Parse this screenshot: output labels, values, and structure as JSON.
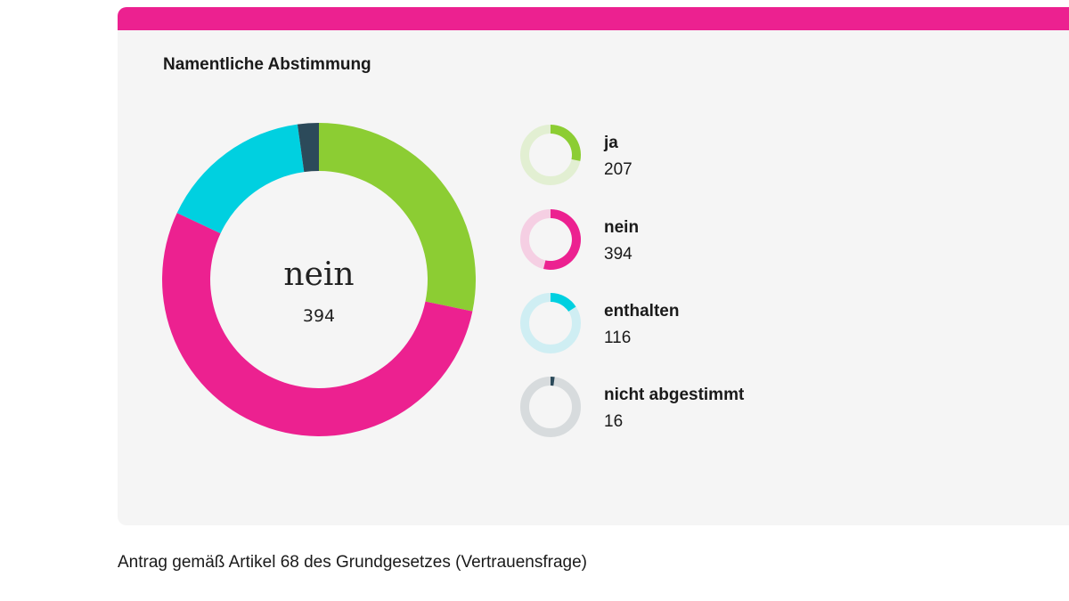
{
  "card": {
    "title": "Namentliche Abstimmung"
  },
  "chart_data": {
    "type": "pie",
    "title": "Namentliche Abstimmung",
    "categories": [
      "ja",
      "nein",
      "enthalten",
      "nicht abgestimmt"
    ],
    "values": [
      207,
      394,
      116,
      16
    ],
    "colors": [
      "#8ccd33",
      "#ec2190",
      "#00d0e0",
      "#2c4a5a"
    ],
    "track_colors": [
      "#e2efd2",
      "#f5cfe3",
      "#cfeef3",
      "#d7dbdd"
    ],
    "center": {
      "label": "nein",
      "value": "394"
    }
  },
  "legend": {
    "items": [
      {
        "label": "ja",
        "count": "207"
      },
      {
        "label": "nein",
        "count": "394"
      },
      {
        "label": "enthalten",
        "count": "116"
      },
      {
        "label": "nicht abgestimmt",
        "count": "16"
      }
    ]
  },
  "caption": "Antrag gemäß Artikel 68 des Grundgesetzes (Vertrauensfrage)"
}
